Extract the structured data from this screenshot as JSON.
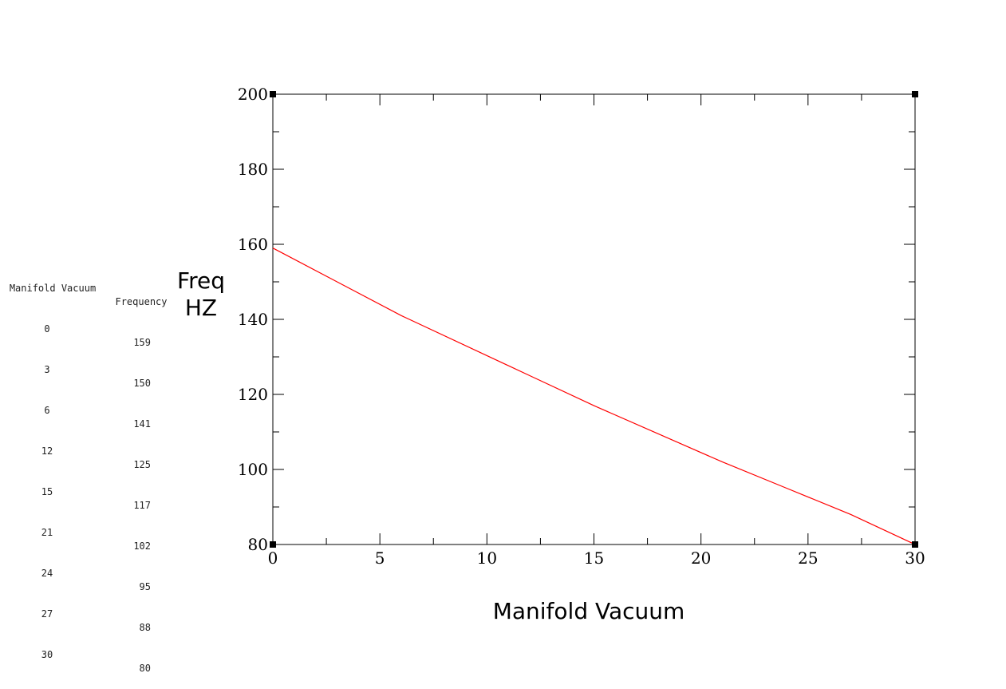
{
  "table": {
    "headers": [
      "Manifold Vacuum",
      "Frequency"
    ],
    "rows": [
      [
        "0",
        "159"
      ],
      [
        "3",
        "150"
      ],
      [
        "6",
        "141"
      ],
      [
        "12",
        "125"
      ],
      [
        "15",
        "117"
      ],
      [
        "21",
        "102"
      ],
      [
        "24",
        "95"
      ],
      [
        "27",
        "88"
      ],
      [
        "30",
        "80"
      ]
    ]
  },
  "chart_data": {
    "type": "line",
    "title": "",
    "xlabel": "Manifold Vacuum",
    "ylabel_lines": [
      "Freq",
      "HZ"
    ],
    "xlim": [
      0,
      30
    ],
    "ylim": [
      80,
      200
    ],
    "xticks": [
      0,
      5,
      10,
      15,
      20,
      25,
      30
    ],
    "yticks": [
      80,
      100,
      120,
      140,
      160,
      180,
      200
    ],
    "grid": false,
    "line_color": "#ff0000",
    "series": [
      {
        "x": [
          0,
          3,
          6,
          12,
          15,
          21,
          24,
          27,
          30
        ],
        "y": [
          159,
          150,
          141,
          125,
          117,
          102,
          95,
          88,
          80
        ]
      }
    ]
  }
}
